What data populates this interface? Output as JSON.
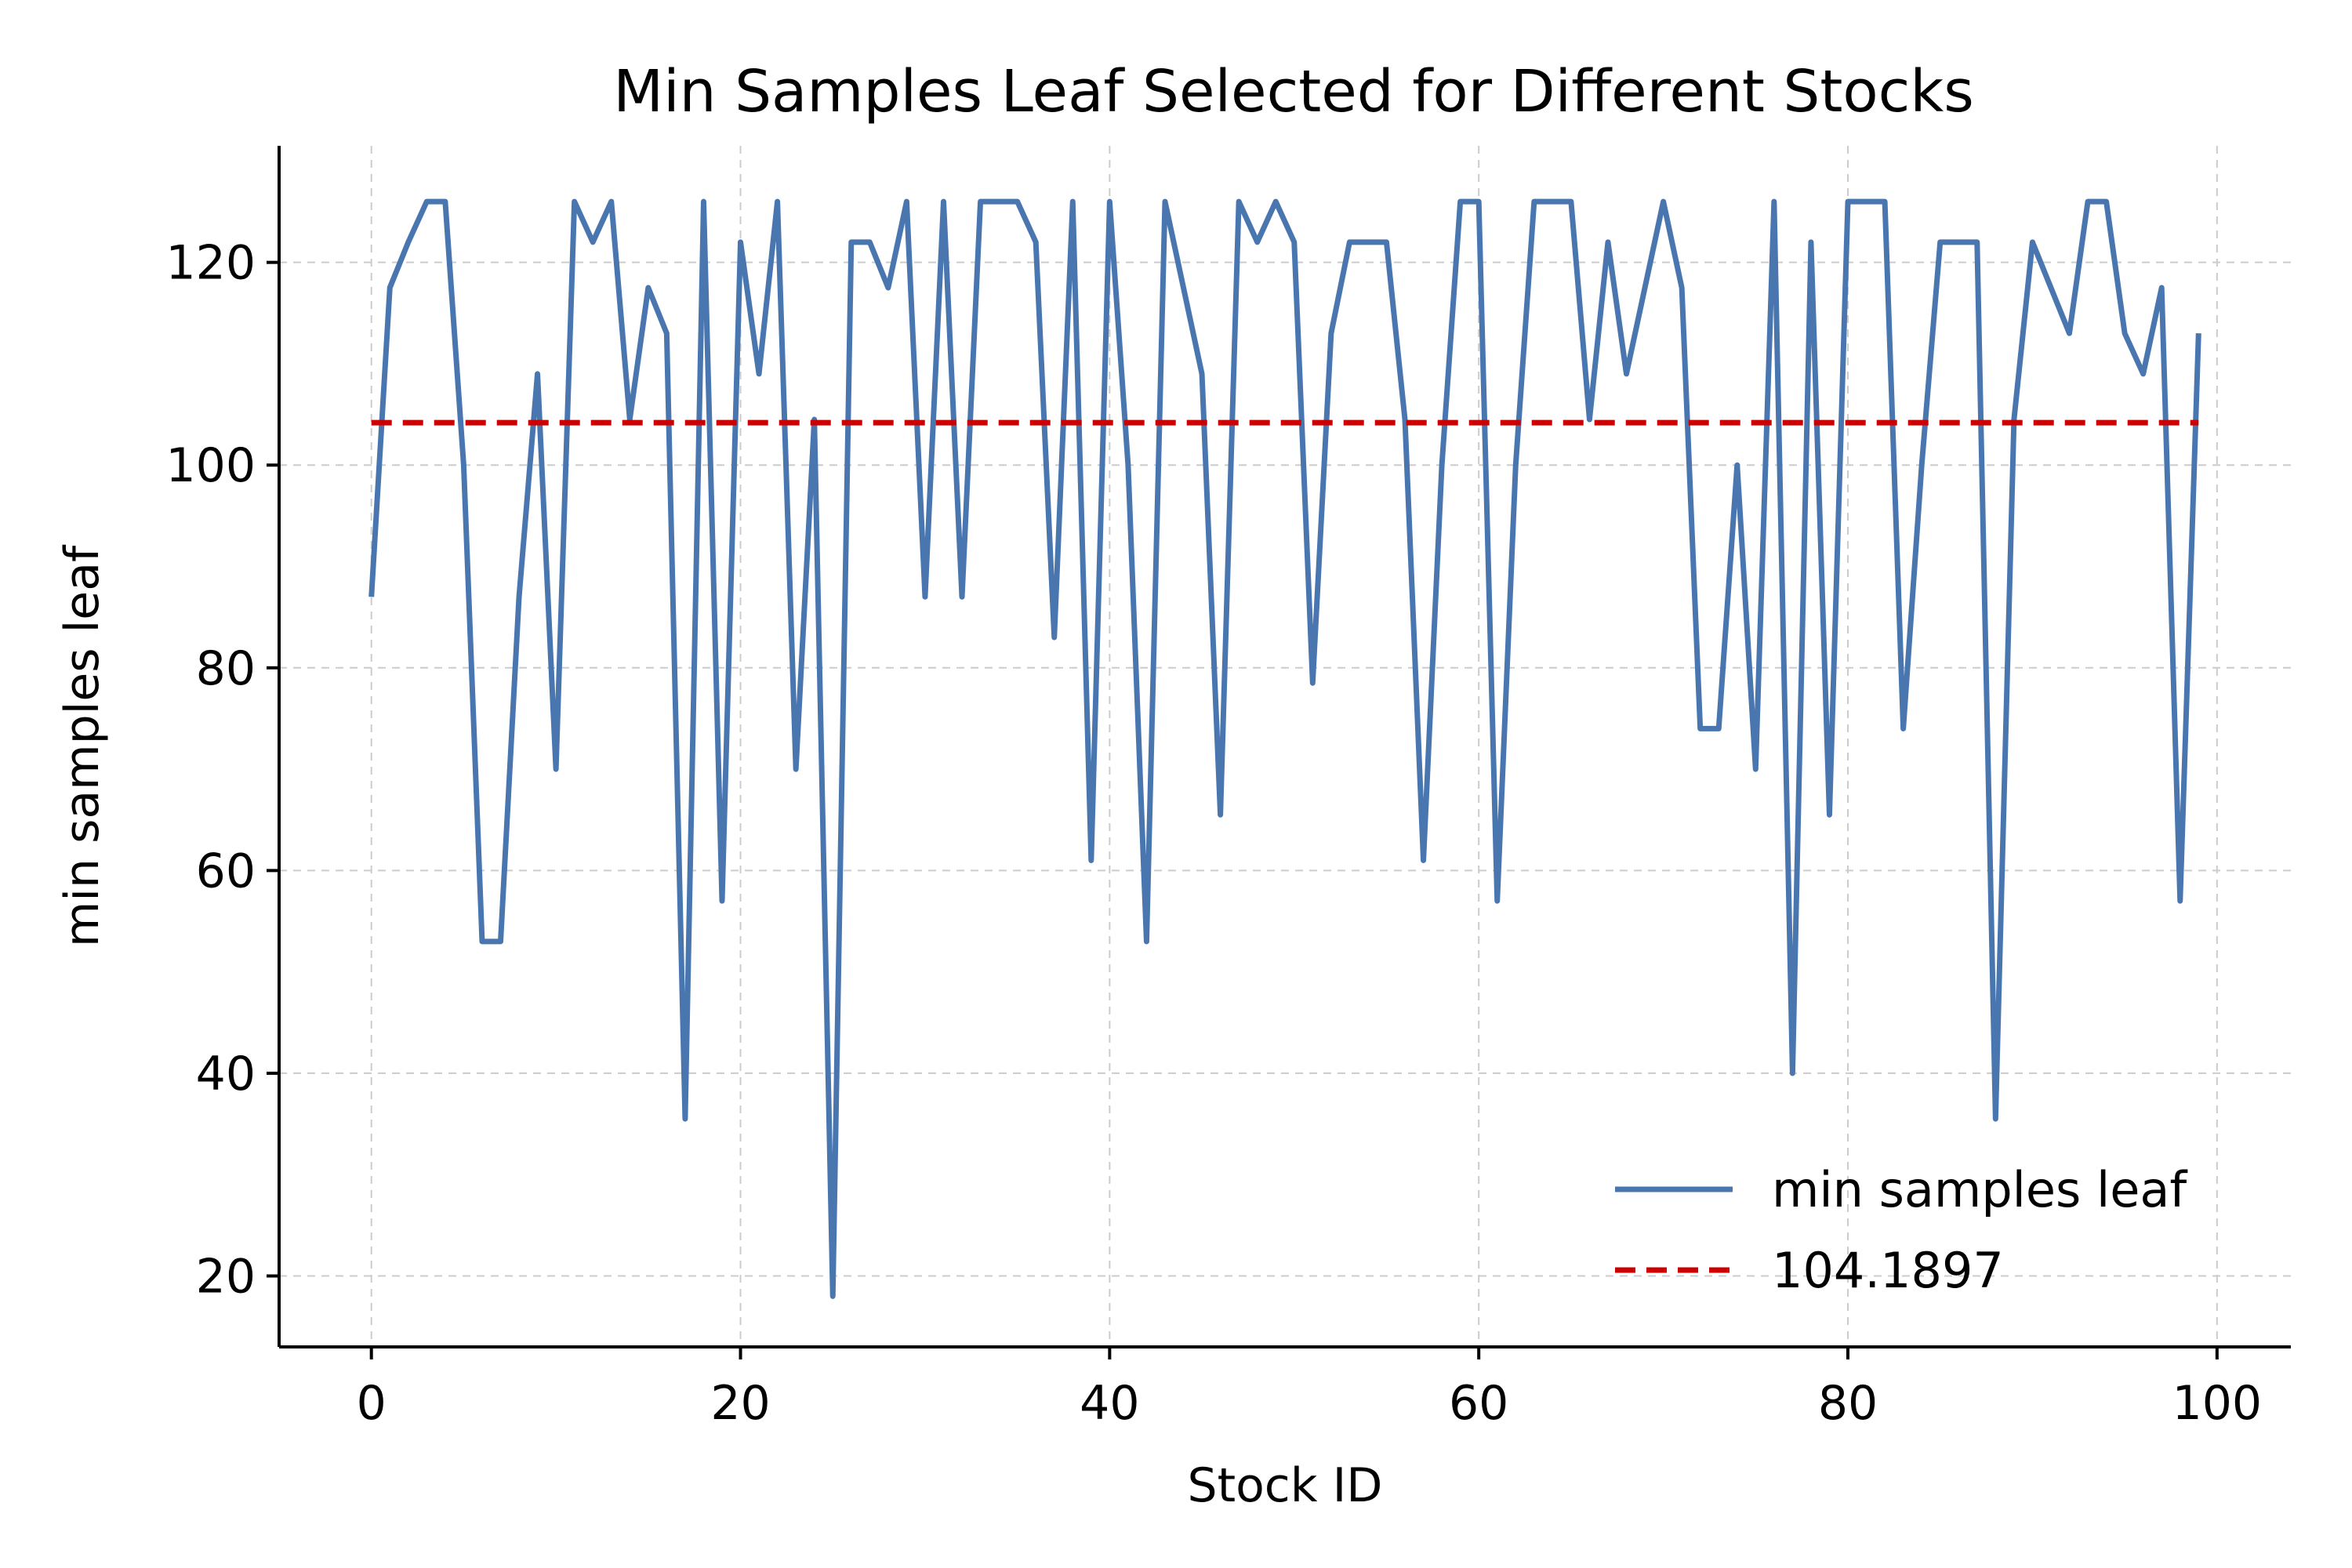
{
  "chart_data": {
    "type": "line",
    "title": "Min Samples Leaf Selected for Different Stocks",
    "xlabel": "Stock ID",
    "ylabel": "min samples leaf",
    "xlim": [
      -5,
      104
    ],
    "ylim": [
      13,
      131.5
    ],
    "xticks": [
      0,
      20,
      40,
      60,
      80,
      100
    ],
    "yticks": [
      20,
      40,
      60,
      80,
      100,
      120
    ],
    "grid": true,
    "legend_position": "lower-right",
    "series": [
      {
        "name": "min samples leaf",
        "color": "#4a76b0",
        "style": "solid",
        "x": [
          0,
          1,
          2,
          3,
          4,
          5,
          6,
          7,
          8,
          9,
          10,
          11,
          12,
          13,
          14,
          15,
          16,
          17,
          18,
          19,
          20,
          21,
          22,
          23,
          24,
          25,
          26,
          27,
          28,
          29,
          30,
          31,
          32,
          33,
          34,
          35,
          36,
          37,
          38,
          39,
          40,
          41,
          42,
          43,
          44,
          45,
          46,
          47,
          48,
          49,
          50,
          51,
          52,
          53,
          54,
          55,
          56,
          57,
          58,
          59,
          60,
          61,
          62,
          63,
          64,
          65,
          66,
          67,
          68,
          69,
          70,
          71,
          72,
          73,
          74,
          75,
          76,
          77,
          78,
          79,
          80,
          81,
          82,
          83,
          84,
          85,
          86,
          87,
          88,
          89,
          90,
          91,
          92,
          93,
          94,
          95,
          96,
          97,
          98,
          99
        ],
        "values": [
          87,
          117.5,
          122,
          126,
          126,
          100,
          53,
          53,
          87,
          109,
          70,
          126,
          122,
          126,
          104.5,
          117.5,
          113,
          35.5,
          126,
          57,
          122,
          109,
          126,
          70,
          104.5,
          18,
          122,
          122,
          117.5,
          126,
          87,
          126,
          87,
          126,
          126,
          126,
          122,
          83,
          126,
          61,
          126,
          100,
          53,
          126,
          117.5,
          109,
          65.5,
          126,
          122,
          126,
          122,
          78.5,
          113,
          122,
          122,
          122,
          104.5,
          61,
          100,
          126,
          126,
          57,
          100,
          126,
          126,
          126,
          104.5,
          122,
          109,
          117.5,
          126,
          117.5,
          74,
          74,
          100,
          70,
          126,
          40,
          122,
          65.5,
          126,
          126,
          126,
          74,
          100,
          122,
          122,
          122,
          35.5,
          104.5,
          122,
          117.5,
          113,
          126,
          126,
          113,
          109,
          117.5,
          57,
          113
        ]
      },
      {
        "name": "104.1897",
        "color": "#cc0000",
        "style": "dashed",
        "x": [
          0,
          99
        ],
        "values": [
          104.1897,
          104.1897
        ]
      }
    ]
  }
}
